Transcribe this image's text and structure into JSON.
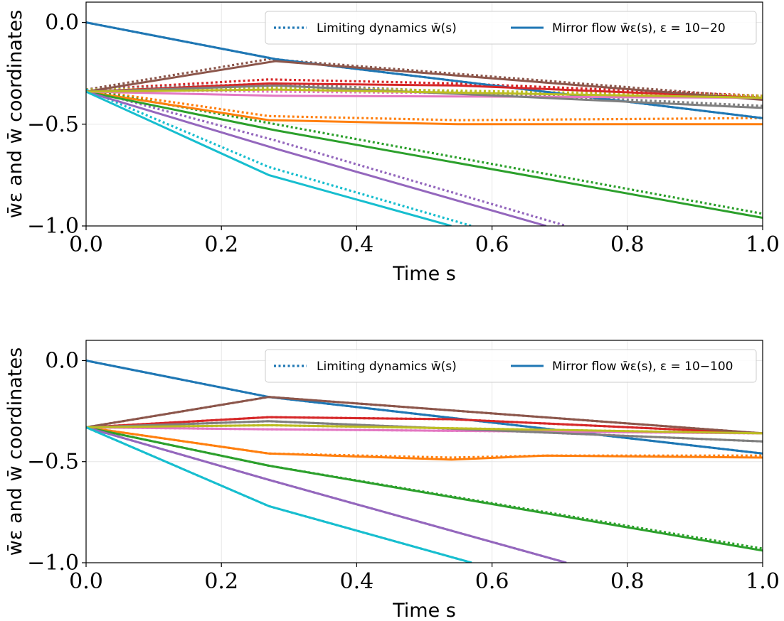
{
  "chart_data": [
    {
      "type": "line",
      "xlabel": "Time s",
      "ylabel": "w̄ε and w̄ coordinates",
      "xlim": [
        0.0,
        1.0
      ],
      "ylim": [
        -1.0,
        0.1
      ],
      "xticks": [
        "0.0",
        "0.2",
        "0.4",
        "0.6",
        "0.8",
        "1.0"
      ],
      "yticks": [
        "0.0",
        "−0.5",
        "−1.0"
      ],
      "grid": true,
      "legend": {
        "placement": "top-right",
        "dotted_label": "Limiting dynamics w̄(s)",
        "solid_label": "Mirror flow w̄ε(s), ε = 10−20"
      },
      "series": [
        {
          "color": "#1f77b4",
          "solid": [
            [
              0,
              0
            ],
            [
              0.28,
              -0.18
            ],
            [
              1.0,
              -0.47
            ]
          ],
          "dotted": [
            [
              0,
              0
            ],
            [
              0.28,
              -0.18
            ],
            [
              1.0,
              -0.47
            ]
          ]
        },
        {
          "color": "#ff7f0e",
          "solid": [
            [
              0,
              -0.34
            ],
            [
              0.27,
              -0.48
            ],
            [
              0.55,
              -0.5
            ],
            [
              1.0,
              -0.5
            ]
          ],
          "dotted": [
            [
              0,
              -0.33
            ],
            [
              0.27,
              -0.46
            ],
            [
              0.55,
              -0.48
            ],
            [
              1.0,
              -0.47
            ]
          ]
        },
        {
          "color": "#2ca02c",
          "solid": [
            [
              0,
              -0.34
            ],
            [
              0.28,
              -0.53
            ],
            [
              1.0,
              -0.96
            ]
          ],
          "dotted": [
            [
              0,
              -0.33
            ],
            [
              0.28,
              -0.5
            ],
            [
              1.0,
              -0.94
            ]
          ]
        },
        {
          "color": "#d62728",
          "solid": [
            [
              0,
              -0.34
            ],
            [
              0.27,
              -0.3
            ],
            [
              0.55,
              -0.31
            ],
            [
              1.0,
              -0.37
            ]
          ],
          "dotted": [
            [
              0,
              -0.33
            ],
            [
              0.27,
              -0.28
            ],
            [
              0.55,
              -0.3
            ],
            [
              1.0,
              -0.36
            ]
          ]
        },
        {
          "color": "#9467bd",
          "solid": [
            [
              0,
              -0.34
            ],
            [
              0.28,
              -0.62
            ],
            [
              0.68,
              -1.0
            ]
          ],
          "dotted": [
            [
              0,
              -0.33
            ],
            [
              0.28,
              -0.58
            ],
            [
              0.71,
              -1.0
            ]
          ]
        },
        {
          "color": "#8c564b",
          "solid": [
            [
              0,
              -0.34
            ],
            [
              0.28,
              -0.19
            ],
            [
              1.0,
              -0.38
            ]
          ],
          "dotted": [
            [
              0,
              -0.33
            ],
            [
              0.27,
              -0.18
            ],
            [
              1.0,
              -0.37
            ]
          ]
        },
        {
          "color": "#e377c2",
          "solid": [
            [
              0,
              -0.34
            ],
            [
              0.28,
              -0.36
            ],
            [
              1.0,
              -0.37
            ]
          ],
          "dotted": [
            [
              0,
              -0.33
            ],
            [
              0.28,
              -0.34
            ],
            [
              1.0,
              -0.36
            ]
          ]
        },
        {
          "color": "#7f7f7f",
          "solid": [
            [
              0,
              -0.34
            ],
            [
              0.28,
              -0.31
            ],
            [
              1.0,
              -0.42
            ]
          ],
          "dotted": [
            [
              0,
              -0.33
            ],
            [
              0.28,
              -0.3
            ],
            [
              1.0,
              -0.41
            ]
          ]
        },
        {
          "color": "#bcbd22",
          "solid": [
            [
              0,
              -0.34
            ],
            [
              0.28,
              -0.33
            ],
            [
              1.0,
              -0.37
            ]
          ],
          "dotted": [
            [
              0,
              -0.33
            ],
            [
              0.28,
              -0.32
            ],
            [
              1.0,
              -0.36
            ]
          ]
        },
        {
          "color": "#17becf",
          "solid": [
            [
              0,
              -0.34
            ],
            [
              0.27,
              -0.75
            ],
            [
              0.54,
              -1.0
            ]
          ],
          "dotted": [
            [
              0,
              -0.33
            ],
            [
              0.27,
              -0.71
            ],
            [
              0.57,
              -1.0
            ]
          ]
        }
      ]
    },
    {
      "type": "line",
      "xlabel": "Time s",
      "ylabel": "w̄ε and w̄ coordinates",
      "xlim": [
        0.0,
        1.0
      ],
      "ylim": [
        -1.0,
        0.1
      ],
      "xticks": [
        "0.0",
        "0.2",
        "0.4",
        "0.6",
        "0.8",
        "1.0"
      ],
      "yticks": [
        "0.0",
        "−0.5",
        "−1.0"
      ],
      "grid": true,
      "legend": {
        "placement": "top-right",
        "dotted_label": "Limiting dynamics w̄(s)",
        "solid_label": "Mirror flow w̄ε(s), ε = 10−100"
      },
      "series": [
        {
          "color": "#1f77b4",
          "solid": [
            [
              0,
              0
            ],
            [
              0.27,
              -0.18
            ],
            [
              1.0,
              -0.46
            ]
          ],
          "dotted": [
            [
              0,
              0
            ],
            [
              0.27,
              -0.18
            ],
            [
              1.0,
              -0.46
            ]
          ]
        },
        {
          "color": "#ff7f0e",
          "solid": [
            [
              0,
              -0.33
            ],
            [
              0.27,
              -0.46
            ],
            [
              0.54,
              -0.49
            ],
            [
              0.68,
              -0.47
            ],
            [
              1.0,
              -0.48
            ]
          ],
          "dotted": [
            [
              0,
              -0.33
            ],
            [
              0.27,
              -0.46
            ],
            [
              0.54,
              -0.48
            ],
            [
              0.68,
              -0.47
            ],
            [
              1.0,
              -0.47
            ]
          ]
        },
        {
          "color": "#2ca02c",
          "solid": [
            [
              0,
              -0.33
            ],
            [
              0.27,
              -0.52
            ],
            [
              1.0,
              -0.94
            ]
          ],
          "dotted": [
            [
              0,
              -0.33
            ],
            [
              0.27,
              -0.52
            ],
            [
              1.0,
              -0.93
            ]
          ]
        },
        {
          "color": "#d62728",
          "solid": [
            [
              0,
              -0.33
            ],
            [
              0.27,
              -0.28
            ],
            [
              0.54,
              -0.29
            ],
            [
              1.0,
              -0.36
            ]
          ],
          "dotted": [
            [
              0,
              -0.33
            ],
            [
              0.27,
              -0.28
            ],
            [
              0.54,
              -0.29
            ],
            [
              1.0,
              -0.36
            ]
          ]
        },
        {
          "color": "#9467bd",
          "solid": [
            [
              0,
              -0.33
            ],
            [
              0.27,
              -0.59
            ],
            [
              0.71,
              -1.0
            ]
          ],
          "dotted": [
            [
              0,
              -0.33
            ],
            [
              0.27,
              -0.59
            ],
            [
              0.71,
              -1.0
            ]
          ]
        },
        {
          "color": "#8c564b",
          "solid": [
            [
              0,
              -0.33
            ],
            [
              0.27,
              -0.18
            ],
            [
              1.0,
              -0.36
            ]
          ],
          "dotted": [
            [
              0,
              -0.33
            ],
            [
              0.27,
              -0.18
            ],
            [
              1.0,
              -0.36
            ]
          ]
        },
        {
          "color": "#e377c2",
          "solid": [
            [
              0,
              -0.33
            ],
            [
              0.27,
              -0.34
            ],
            [
              1.0,
              -0.36
            ]
          ],
          "dotted": [
            [
              0,
              -0.33
            ],
            [
              0.27,
              -0.34
            ],
            [
              1.0,
              -0.36
            ]
          ]
        },
        {
          "color": "#7f7f7f",
          "solid": [
            [
              0,
              -0.33
            ],
            [
              0.27,
              -0.3
            ],
            [
              1.0,
              -0.4
            ]
          ],
          "dotted": [
            [
              0,
              -0.33
            ],
            [
              0.27,
              -0.3
            ],
            [
              1.0,
              -0.4
            ]
          ]
        },
        {
          "color": "#bcbd22",
          "solid": [
            [
              0,
              -0.33
            ],
            [
              0.27,
              -0.32
            ],
            [
              1.0,
              -0.36
            ]
          ],
          "dotted": [
            [
              0,
              -0.33
            ],
            [
              0.27,
              -0.32
            ],
            [
              1.0,
              -0.36
            ]
          ]
        },
        {
          "color": "#17becf",
          "solid": [
            [
              0,
              -0.33
            ],
            [
              0.27,
              -0.72
            ],
            [
              0.57,
              -1.0
            ]
          ],
          "dotted": [
            [
              0,
              -0.33
            ],
            [
              0.27,
              -0.72
            ],
            [
              0.57,
              -1.0
            ]
          ]
        }
      ]
    }
  ]
}
